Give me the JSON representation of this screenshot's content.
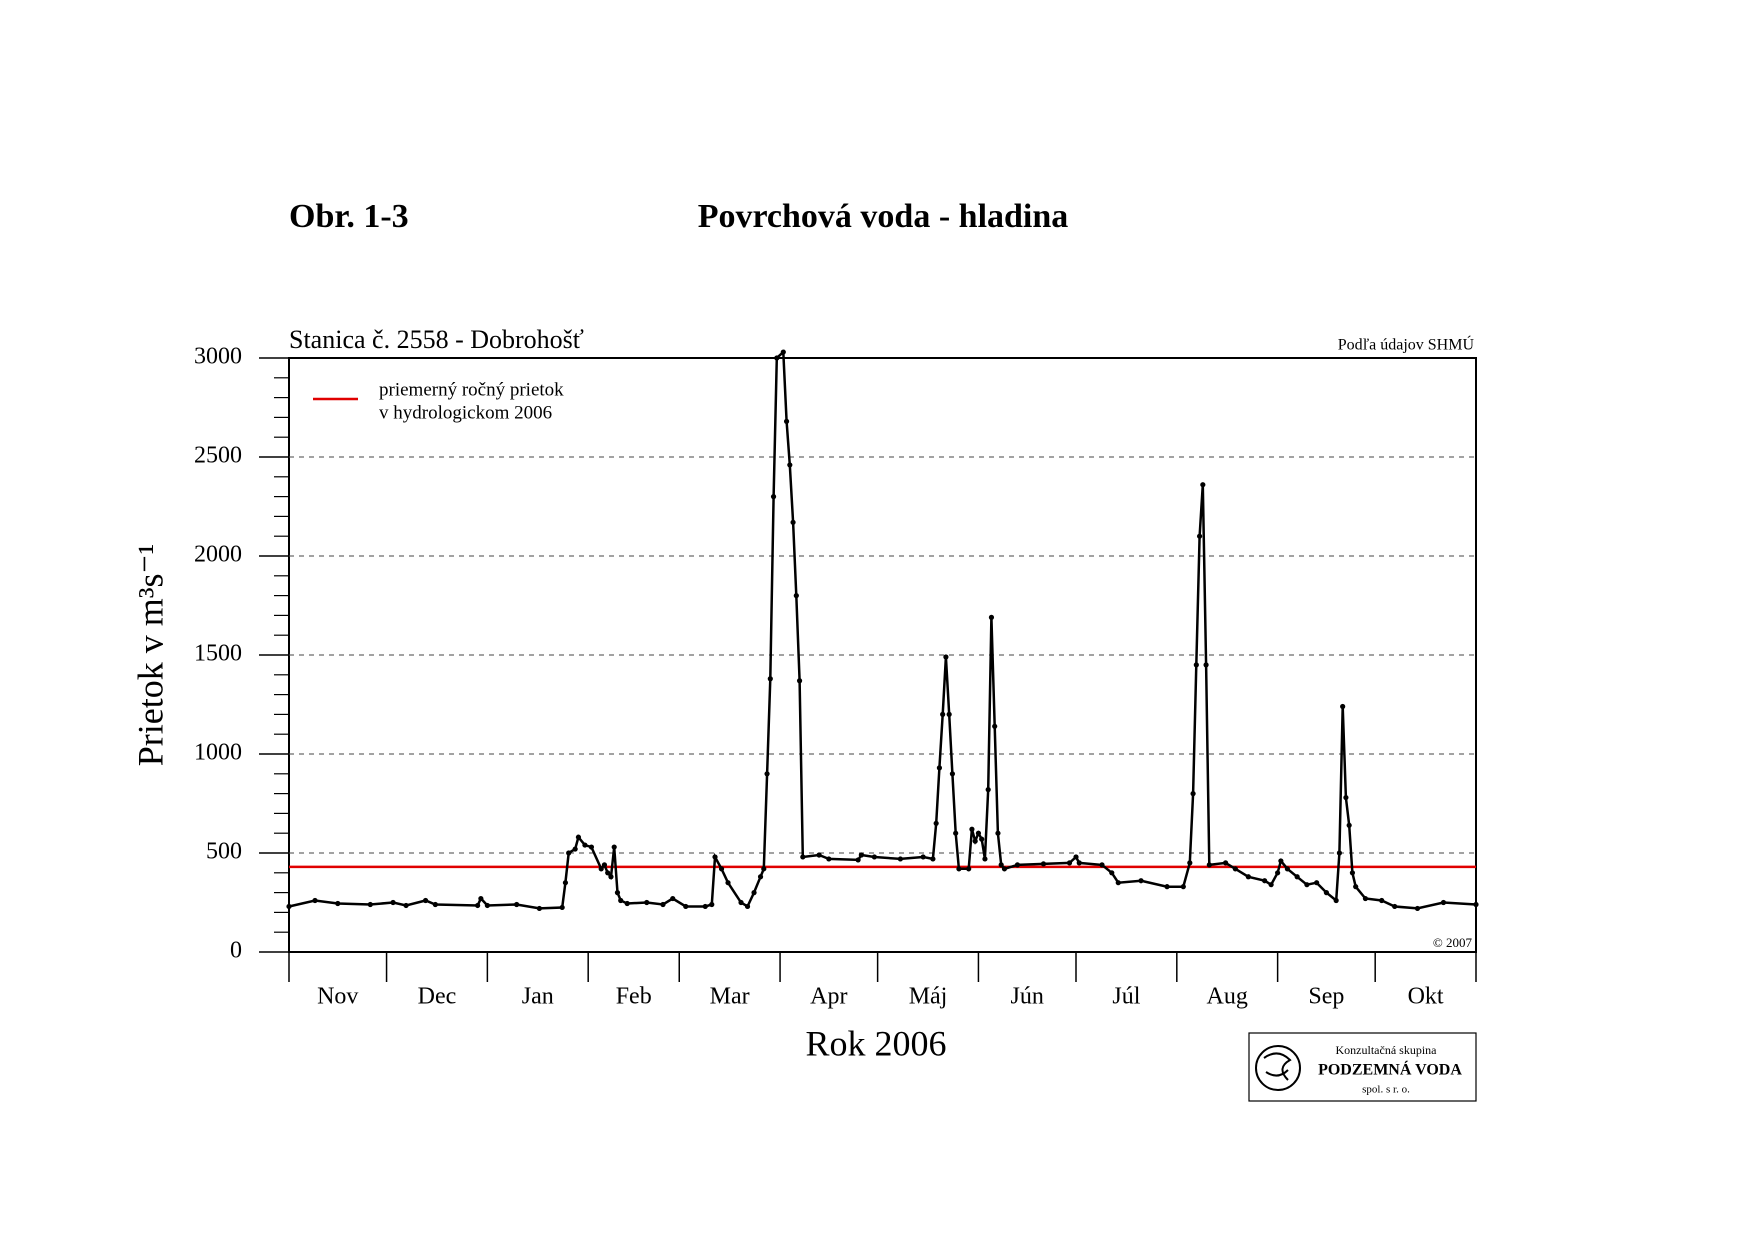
{
  "figure_label": "Obr. 1-3",
  "chart_data": {
    "type": "line",
    "title": "Povrchová voda - hladina",
    "subtitle": "Stanica č. 2558 - Dobrohošť",
    "source": "Podľa údajov SHMÚ",
    "copyright": "© 2007",
    "y_label": "Prietok v m³s⁻¹",
    "x_label": "Rok 2006",
    "categories": [
      "Nov",
      "Dec",
      "Jan",
      "Feb",
      "Mar",
      "Apr",
      "Máj",
      "Jún",
      "Júl",
      "Aug",
      "Sep",
      "Okt"
    ],
    "xlim": [
      0,
      365
    ],
    "xticks": [
      0,
      30,
      61,
      92,
      120,
      151,
      181,
      212,
      242,
      273,
      304,
      334,
      365
    ],
    "ylim": [
      0,
      3000
    ],
    "yticks": [
      0,
      500,
      1000,
      1500,
      2000,
      2500,
      3000
    ],
    "yminorticks": [
      100,
      200,
      300,
      400,
      600,
      700,
      800,
      900,
      1100,
      1200,
      1300,
      1400,
      1600,
      1700,
      1800,
      1900,
      2100,
      2200,
      2300,
      2400,
      2600,
      2700,
      2800,
      2900
    ],
    "grid": true,
    "series": [
      {
        "color": "#000000",
        "x": [
          0,
          8,
          15,
          25,
          32,
          36,
          42,
          45,
          58,
          59,
          61,
          70,
          77,
          84,
          85,
          86,
          88,
          89,
          91,
          93,
          96,
          97,
          98,
          99,
          100,
          101,
          102,
          104,
          110,
          115,
          118,
          122,
          128,
          130,
          131,
          133,
          135,
          139,
          141,
          143,
          145,
          146,
          147,
          148,
          149,
          150,
          152,
          153,
          154,
          155,
          156,
          157,
          158,
          163,
          166,
          175,
          176,
          180,
          188,
          195,
          198,
          199,
          200,
          201,
          202,
          203,
          204,
          205,
          206,
          209,
          210,
          211,
          212,
          213,
          214,
          215,
          216,
          217,
          218,
          219,
          220,
          224,
          232,
          240,
          242,
          243,
          250,
          253,
          255,
          262,
          270,
          275,
          277,
          278,
          279,
          280,
          281,
          282,
          283,
          288,
          291,
          295,
          300,
          302,
          304,
          305,
          307,
          310,
          313,
          316,
          319,
          322,
          323,
          324,
          325,
          326,
          327,
          328,
          331,
          336,
          340,
          347,
          355,
          365
        ],
        "values": [
          230,
          260,
          245,
          240,
          250,
          235,
          260,
          240,
          235,
          270,
          235,
          240,
          220,
          225,
          350,
          500,
          520,
          580,
          540,
          530,
          420,
          440,
          400,
          380,
          530,
          300,
          260,
          245,
          250,
          240,
          270,
          230,
          230,
          240,
          480,
          420,
          350,
          250,
          230,
          300,
          380,
          420,
          900,
          1380,
          2300,
          3000,
          3030,
          2680,
          2460,
          2170,
          1800,
          1370,
          480,
          490,
          470,
          465,
          490,
          480,
          470,
          480,
          470,
          650,
          930,
          1200,
          1490,
          1200,
          900,
          600,
          420,
          420,
          620,
          560,
          600,
          570,
          470,
          820,
          1690,
          1140,
          600,
          440,
          420,
          440,
          445,
          450,
          480,
          450,
          440,
          400,
          350,
          360,
          330,
          330,
          450,
          800,
          1450,
          2100,
          2360,
          1450,
          440,
          450,
          420,
          380,
          360,
          340,
          400,
          460,
          420,
          380,
          340,
          350,
          300,
          260,
          500,
          1240,
          780,
          640,
          400,
          330,
          270,
          260,
          230,
          220,
          250,
          240
        ]
      }
    ],
    "reference_line": {
      "value": 430,
      "color": "#e00000",
      "label_lines": [
        "priemerný ročný prietok",
        "v hydrologickom 2006"
      ]
    }
  },
  "logo": {
    "line1": "Konzultačná skupina",
    "line2": "PODZEMNÁ VODA",
    "line3": "spol. s r. o."
  }
}
